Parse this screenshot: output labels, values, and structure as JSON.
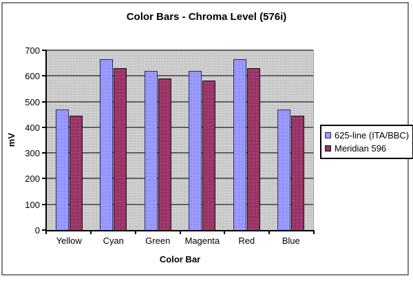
{
  "frame": {
    "border_color": "#808080",
    "background": "#ffffff"
  },
  "chart_data": {
    "type": "bar",
    "title": "Color Bars - Chroma Level (576i)",
    "xlabel": "Color Bar",
    "ylabel": "mV",
    "categories": [
      "Yellow",
      "Cyan",
      "Green",
      "Magenta",
      "Red",
      "Blue"
    ],
    "series": [
      {
        "name": "625-line (ITA/BBC)",
        "values": [
          470,
          665,
          620,
          620,
          665,
          470
        ],
        "color": "#9d9dff",
        "border_color": "#26265e"
      },
      {
        "name": "Meridian 596",
        "values": [
          445,
          630,
          590,
          583,
          630,
          445
        ],
        "color": "#993366",
        "border_color": "#0d0d0d"
      }
    ],
    "ylim": [
      0,
      700
    ],
    "yticks": [
      0,
      100,
      200,
      300,
      400,
      500,
      600,
      700
    ],
    "grid": true,
    "legend_position": "right",
    "plot_bg": "#c7c7c7",
    "gridline_color": "#4a4a4a"
  }
}
